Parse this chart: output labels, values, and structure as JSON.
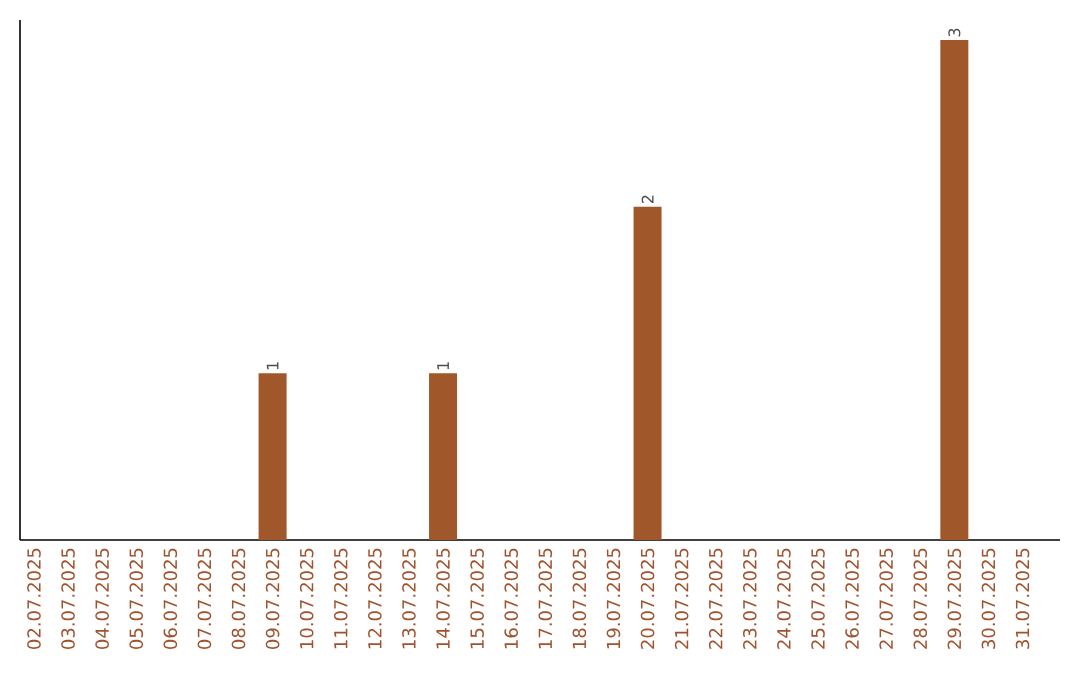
{
  "chart_data": {
    "type": "bar",
    "categories": [
      "02.07.2025",
      "03.07.2025",
      "04.07.2025",
      "05.07.2025",
      "06.07.2025",
      "07.07.2025",
      "08.07.2025",
      "09.07.2025",
      "10.07.2025",
      "11.07.2025",
      "12.07.2025",
      "13.07.2025",
      "14.07.2025",
      "15.07.2025",
      "16.07.2025",
      "17.07.2025",
      "18.07.2025",
      "19.07.2025",
      "20.07.2025",
      "21.07.2025",
      "22.07.2025",
      "23.07.2025",
      "24.07.2025",
      "25.07.2025",
      "26.07.2025",
      "27.07.2025",
      "28.07.2025",
      "29.07.2025",
      "30.07.2025",
      "31.07.2025"
    ],
    "values": [
      0,
      0,
      0,
      0,
      0,
      0,
      0,
      1,
      0,
      0,
      0,
      0,
      1,
      0,
      0,
      0,
      0,
      0,
      2,
      0,
      0,
      0,
      0,
      0,
      0,
      0,
      0,
      3,
      0,
      0
    ],
    "value_labels": [
      null,
      null,
      null,
      null,
      null,
      null,
      null,
      "1",
      null,
      null,
      null,
      null,
      "1",
      null,
      null,
      null,
      null,
      null,
      "2",
      null,
      null,
      null,
      null,
      null,
      null,
      null,
      null,
      "3",
      null,
      null
    ],
    "color": "#a0582b"
  }
}
